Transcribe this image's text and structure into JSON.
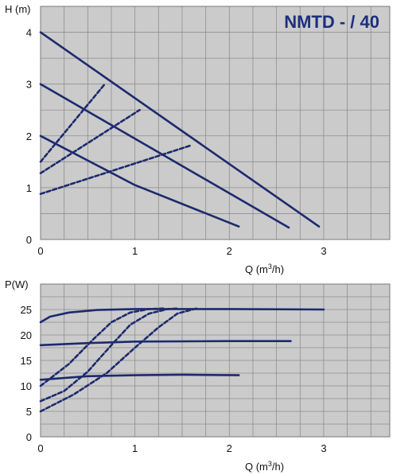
{
  "colors": {
    "plot_bg": "#cbcbcb",
    "grid": "#8e8e8e",
    "curve": "#1c2a6e",
    "title": "#1c2f7d"
  },
  "chart_data": [
    {
      "type": "line",
      "title": "NMTD - / 40",
      "xlabel_prefix": "Q (m",
      "xlabel_sup": "3",
      "xlabel_suffix": "/h)",
      "ylabel": "H (m)",
      "xlim": [
        0,
        3.7
      ],
      "ylim": [
        0,
        4.5
      ],
      "xticks": [
        0,
        1,
        2,
        3
      ],
      "yticks": [
        0,
        1,
        2,
        3,
        4
      ],
      "grid": true,
      "series": [
        {
          "style": "solid",
          "points": [
            [
              0,
              4.0
            ],
            [
              2.95,
              0.25
            ]
          ]
        },
        {
          "style": "solid",
          "points": [
            [
              0,
              3.0
            ],
            [
              2.63,
              0.23
            ]
          ]
        },
        {
          "style": "solid",
          "points": [
            [
              0,
              2.0
            ],
            [
              1.0,
              1.05
            ],
            [
              2.1,
              0.25
            ]
          ]
        },
        {
          "style": "dashed",
          "points": [
            [
              0,
              1.5
            ],
            [
              0.68,
              3.0
            ]
          ]
        },
        {
          "style": "dashed",
          "points": [
            [
              0,
              1.28
            ],
            [
              1.05,
              2.5
            ]
          ]
        },
        {
          "style": "dashed",
          "points": [
            [
              0,
              0.88
            ],
            [
              1.6,
              1.82
            ]
          ]
        }
      ]
    },
    {
      "type": "line",
      "xlabel_prefix": "Q (m",
      "xlabel_sup": "3",
      "xlabel_suffix": "/h)",
      "ylabel": "P(W)",
      "xlim": [
        0,
        3.7
      ],
      "ylim": [
        0,
        30
      ],
      "xticks": [
        0,
        1,
        2,
        3
      ],
      "yticks": [
        0,
        5,
        10,
        15,
        20,
        25
      ],
      "grid": true,
      "series": [
        {
          "style": "solid",
          "points": [
            [
              0,
              22.5
            ],
            [
              0.1,
              23.6
            ],
            [
              0.3,
              24.4
            ],
            [
              0.6,
              24.9
            ],
            [
              1.0,
              25.1
            ],
            [
              2.0,
              25.1
            ],
            [
              3.0,
              25.0
            ]
          ]
        },
        {
          "style": "solid",
          "points": [
            [
              0,
              18.0
            ],
            [
              0.5,
              18.4
            ],
            [
              1.0,
              18.7
            ],
            [
              2.0,
              18.8
            ],
            [
              2.65,
              18.8
            ]
          ]
        },
        {
          "style": "solid",
          "points": [
            [
              0,
              11.2
            ],
            [
              0.5,
              11.9
            ],
            [
              1.0,
              12.1
            ],
            [
              1.5,
              12.2
            ],
            [
              2.1,
              12.1
            ]
          ]
        },
        {
          "style": "dashed",
          "points": [
            [
              0,
              10.0
            ],
            [
              0.3,
              14.3
            ],
            [
              0.55,
              19.0
            ],
            [
              0.75,
              22.5
            ],
            [
              0.95,
              24.4
            ],
            [
              1.15,
              25.1
            ],
            [
              1.3,
              25.2
            ]
          ]
        },
        {
          "style": "dashed",
          "points": [
            [
              0,
              7.0
            ],
            [
              0.25,
              9.0
            ],
            [
              0.5,
              12.8
            ],
            [
              0.75,
              18.0
            ],
            [
              0.95,
              22.0
            ],
            [
              1.15,
              24.2
            ],
            [
              1.35,
              25.1
            ],
            [
              1.45,
              25.2
            ]
          ]
        },
        {
          "style": "dashed",
          "points": [
            [
              0,
              5.0
            ],
            [
              0.35,
              8.3
            ],
            [
              0.7,
              12.5
            ],
            [
              1.0,
              17.5
            ],
            [
              1.25,
              21.5
            ],
            [
              1.45,
              24.2
            ],
            [
              1.65,
              25.2
            ]
          ]
        }
      ]
    }
  ]
}
